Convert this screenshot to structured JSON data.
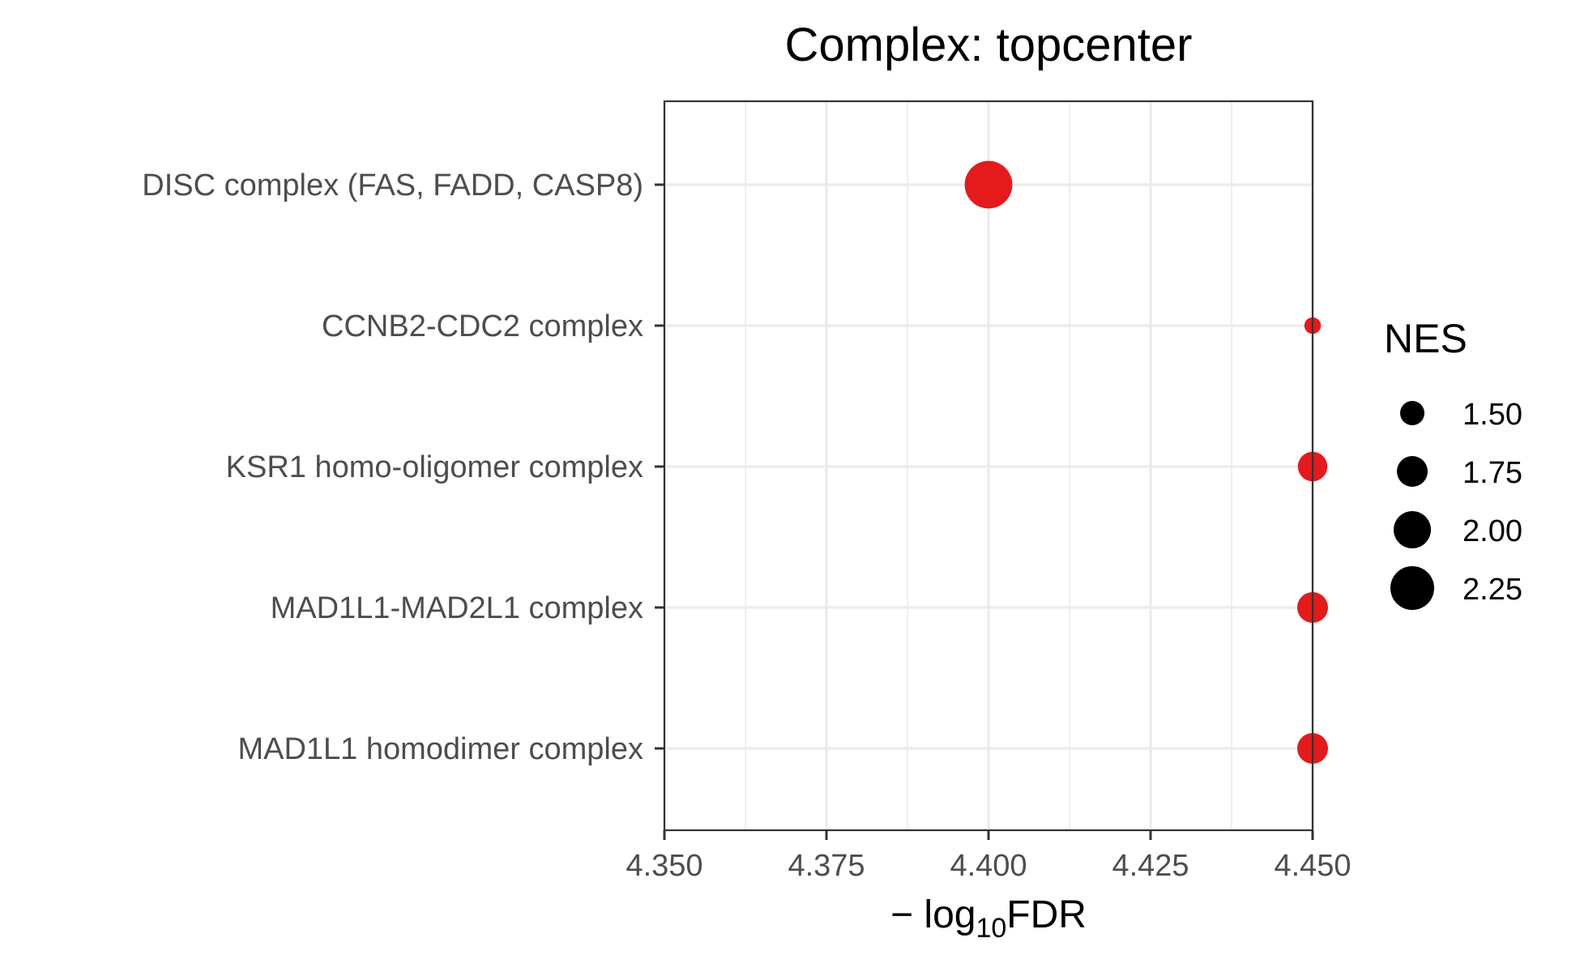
{
  "chart_data": {
    "type": "scatter",
    "title": "Complex: topcenter",
    "xlabel": "−log₁₀FDR",
    "xlabel_parts": {
      "prefix": "− log",
      "subscript": "10",
      "suffix": "FDR"
    },
    "ylabel": "",
    "xlim": [
      4.35,
      4.45
    ],
    "x_ticks": [
      "4.350",
      "4.375",
      "4.400",
      "4.425",
      "4.450"
    ],
    "categories": [
      "DISC complex (FAS, FADD, CASP8)",
      "CCNB2-CDC2 complex",
      "KSR1 homo-oligomer complex",
      "MAD1L1-MAD2L1 complex",
      "MAD1L1 homodimer complex"
    ],
    "points": [
      {
        "category": "DISC complex (FAS, FADD, CASP8)",
        "x": 4.4,
        "nes": 2.4
      },
      {
        "category": "CCNB2-CDC2 complex",
        "x": 4.45,
        "nes": 1.2
      },
      {
        "category": "KSR1 homo-oligomer complex",
        "x": 4.45,
        "nes": 1.7
      },
      {
        "category": "MAD1L1-MAD2L1 complex",
        "x": 4.45,
        "nes": 1.75
      },
      {
        "category": "MAD1L1 homodimer complex",
        "x": 4.45,
        "nes": 1.75
      }
    ],
    "point_color": "#e41a1c",
    "grid": true,
    "legend": {
      "title": "NES",
      "position": "right",
      "entries": [
        {
          "label": "1.50",
          "value": 1.5
        },
        {
          "label": "1.75",
          "value": 1.75
        },
        {
          "label": "2.00",
          "value": 2.0
        },
        {
          "label": "2.25",
          "value": 2.25
        }
      ]
    }
  }
}
